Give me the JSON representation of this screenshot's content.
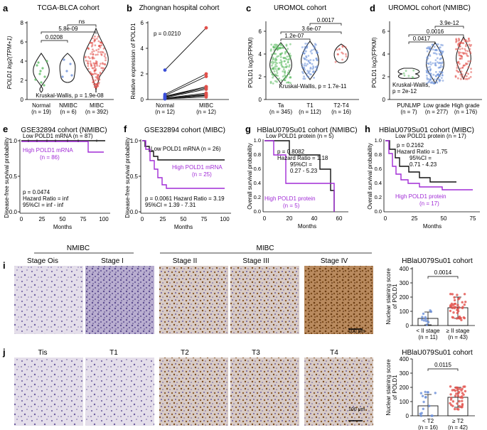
{
  "colors": {
    "green": "#5dbb63",
    "blue": "#6a8fd8",
    "red": "#e2504b",
    "purple": "#a12bd6",
    "black": "#111111",
    "ihc_bg": "#dcd6e6",
    "ihc_brown": "#8b5a2b"
  },
  "panels": {
    "a": {
      "label": "a",
      "title": "TCGA-BLCA cohort",
      "ylabel": "POLD1 log2(TPM+1)",
      "yticks": [
        "0",
        "2",
        "4",
        "6",
        "8"
      ],
      "groups": [
        {
          "name": "Normal",
          "n": "(n = 19)",
          "color": "#5dbb63"
        },
        {
          "name": "NMIBC",
          "n": "(n = 6)",
          "color": "#6a8fd8"
        },
        {
          "name": "MIBC",
          "n": "(n = 392)",
          "color": "#e2504b"
        }
      ],
      "brackets": [
        "0.0208",
        "5.8e-09",
        "ns"
      ],
      "test": "Kruskal-Wallis, p = 1.9e-08"
    },
    "b": {
      "label": "b",
      "title": "Zhongnan hospital cohort",
      "ylabel": "Relative expression of POLD1",
      "yticks": [
        "0",
        "2",
        "4",
        "6"
      ],
      "pvalue": "p = 0.0210",
      "groups": [
        {
          "name": "Normal",
          "n": "(n = 12)"
        },
        {
          "name": "MIBC",
          "n": "(n = 12)"
        }
      ],
      "pairs": [
        [
          2.3,
          5.6
        ],
        [
          0.4,
          2.0
        ],
        [
          0.3,
          1.8
        ],
        [
          0.25,
          1.0
        ],
        [
          0.2,
          1.0
        ],
        [
          0.2,
          0.9
        ],
        [
          0.15,
          0.8
        ],
        [
          0.1,
          0.5
        ],
        [
          0.1,
          0.4
        ],
        [
          0.1,
          0.35
        ],
        [
          0.05,
          0.3
        ],
        [
          0.05,
          0.2
        ]
      ]
    },
    "c": {
      "label": "c",
      "title": "UROMOL cohort",
      "ylabel": "POLD1 log2(FPKM)",
      "yticks": [
        "0",
        "2",
        "4",
        "6"
      ],
      "groups": [
        {
          "name": "Ta",
          "n": "(n = 345)",
          "color": "#5dbb63"
        },
        {
          "name": "T1",
          "n": "(n = 112)",
          "color": "#6a8fd8"
        },
        {
          "name": "T2-T4",
          "n": "(n = 16)",
          "color": "#e2504b"
        }
      ],
      "brackets": [
        "1.2e-07",
        "3.6e-07",
        "0.0017"
      ],
      "test": "Kruskal-Wallis, p = 1.7e-11"
    },
    "d": {
      "label": "d",
      "title": "UROMOL cohort (NMIBC)",
      "ylabel": "POLD1 log2(FPKM)",
      "yticks": [
        "0",
        "2",
        "4",
        "6"
      ],
      "groups": [
        {
          "name": "PUNLMP",
          "n": "(n = 7)",
          "color": "#5dbb63"
        },
        {
          "name": "Low grade",
          "n": "(n = 277)",
          "color": "#6a8fd8"
        },
        {
          "name": "High grade",
          "n": "(n = 176)",
          "color": "#e2504b"
        }
      ],
      "brackets": [
        "0.0417",
        "0.0016",
        "3.9e-12"
      ],
      "test_line1": "Kruskal-Wallis,",
      "test_line2": "p = 2e-12"
    },
    "e": {
      "label": "e",
      "title": "GSE32894 cohort (NMIBC)",
      "ylabel": "Disease-free survival probability",
      "xlabel": "Months",
      "xticks": [
        "0",
        "25",
        "50",
        "75",
        "100"
      ],
      "yticks": [
        "0.0",
        "0.5",
        "1.0"
      ],
      "low": "Low POLD1 mRNA (n = 87)",
      "high_line1": "High POLD1 mRNA",
      "high_line2": "(n = 86)",
      "stats": [
        "p = 0.0474",
        "Hazard Ratio = inf",
        "95%CI = inf - inf"
      ]
    },
    "f": {
      "label": "f",
      "title": "GSE32894 cohort (MIBC)",
      "ylabel": "Disease-free survival probability",
      "xlabel": "Months",
      "xticks": [
        "0",
        "25",
        "50",
        "75",
        "100"
      ],
      "yticks": [
        "0.0",
        "0.5",
        "1.0"
      ],
      "low": "Low POLD1 mRNA (n = 26)",
      "high_line1": "High POLD1 mRNA",
      "high_line2": "(n = 25)",
      "stats_line1": "p = 0.0061  Hazard Ratio = 3.19",
      "stats_line2": "95%CI = 1.39 - 7.31"
    },
    "g": {
      "label": "g",
      "title": "HBlaU079Su01 cohort (NMIBC)",
      "ylabel": "Overall survival probability",
      "xlabel": "Months",
      "xticks": [
        "0",
        "20",
        "40",
        "60"
      ],
      "yticks": [
        "0.0",
        "0.2",
        "0.4",
        "0.6",
        "0.8",
        "1.0"
      ],
      "low": "Low POLD1 protein (n = 5)",
      "high_line1": "High POLD1 protein",
      "high_line2": "(n = 5)",
      "stats": [
        "p = 0.8082",
        "Hazard Ratio = 1.18",
        "95%CI =",
        "0.27 - 5.23"
      ]
    },
    "h": {
      "label": "h",
      "title": "HBlaU079Su01 cohort (MIBC)",
      "ylabel": "Overall survival probability",
      "xlabel": "Months",
      "xticks": [
        "0",
        "25",
        "50",
        "75"
      ],
      "yticks": [
        "0.0",
        "0.2",
        "0.4",
        "0.6",
        "0.8",
        "1.0"
      ],
      "low": "Low POLD1 protein (n = 17)",
      "high_line1": "High POLD1 protein",
      "high_line2": "(n = 17)",
      "stats": [
        "p = 0.2162",
        "Hazard Ratio = 1.75",
        "95%CI =",
        "0.71 - 4.23"
      ]
    },
    "i": {
      "label": "i",
      "group1": "NMIBC",
      "group2": "MIBC",
      "stages": [
        "Stage Ois",
        "Stage I",
        "Stage II",
        "Stage III",
        "Stage IV"
      ],
      "scale": "100 μm",
      "chart_title": "HBlaU079Su01 cohort",
      "ylabel": "Nuclear staining score of POLD1",
      "yticks": [
        "0",
        "100",
        "200",
        "300",
        "400"
      ],
      "pvalue": "0.0014",
      "bars": [
        {
          "name": "< II stage",
          "n": "(n = 11)",
          "mean": 50,
          "sd": 45,
          "color": "#6a8fd8"
        },
        {
          "name": "≥ II stage",
          "n": "(n = 43)",
          "mean": 125,
          "sd": 75,
          "color": "#e2504b"
        }
      ]
    },
    "j": {
      "label": "j",
      "stages": [
        "Tis",
        "T1",
        "T2",
        "T3",
        "T4"
      ],
      "scale": "100 μm",
      "chart_title": "HBlaU079Su01 cohort",
      "ylabel": "Nuclear staining score of POLD1",
      "yticks": [
        "0",
        "100",
        "200",
        "300",
        "400"
      ],
      "pvalue": "0.0115",
      "bars": [
        {
          "name": "< T2",
          "n": "(n = 16)",
          "mean": 70,
          "sd": 80,
          "color": "#6a8fd8"
        },
        {
          "name": "≥ T2",
          "n": "(n = 42)",
          "mean": 130,
          "sd": 70,
          "color": "#e2504b"
        }
      ]
    }
  },
  "chart_data": [
    {
      "type": "scatter",
      "panel": "a",
      "title": "TCGA-BLCA cohort",
      "ylabel": "POLD1 log2(TPM+1)",
      "categories": [
        "Normal",
        "NMIBC",
        "MIBC"
      ],
      "series": [
        {
          "name": "median",
          "values": [
            3.6,
            4.3,
            4.8
          ]
        }
      ],
      "ylim": [
        0,
        8
      ]
    },
    {
      "type": "line",
      "panel": "b",
      "title": "Zhongnan hospital cohort",
      "ylabel": "Relative expression of POLD1",
      "categories": [
        "Normal",
        "MIBC"
      ],
      "ylim": [
        0,
        6
      ]
    },
    {
      "type": "scatter",
      "panel": "c",
      "title": "UROMOL cohort",
      "ylabel": "POLD1 log2(FPKM)",
      "categories": [
        "Ta",
        "T1",
        "T2-T4"
      ],
      "series": [
        {
          "name": "median",
          "values": [
            2.8,
            3.4,
            3.8
          ]
        }
      ],
      "ylim": [
        0,
        7
      ]
    },
    {
      "type": "scatter",
      "panel": "d",
      "title": "UROMOL cohort (NMIBC)",
      "ylabel": "POLD1 log2(FPKM)",
      "categories": [
        "PUNLMP",
        "Low grade",
        "High grade"
      ],
      "series": [
        {
          "name": "median",
          "values": [
            2.2,
            2.9,
            3.4
          ]
        }
      ],
      "ylim": [
        0,
        7
      ]
    },
    {
      "type": "line",
      "panel": "e",
      "title": "GSE32894 cohort (NMIBC)",
      "xlabel": "Months",
      "ylabel": "Disease-free survival probability",
      "series": [
        {
          "name": "Low POLD1 mRNA",
          "x": [
            0,
            105
          ],
          "y": [
            1.0,
            1.0
          ]
        },
        {
          "name": "High POLD1 mRNA",
          "x": [
            0,
            80,
            82,
            105
          ],
          "y": [
            1.0,
            1.0,
            0.84,
            0.84
          ]
        }
      ],
      "xlim": [
        0,
        110
      ],
      "ylim": [
        0,
        1
      ]
    },
    {
      "type": "line",
      "panel": "f",
      "title": "GSE32894 cohort (MIBC)",
      "xlabel": "Months",
      "ylabel": "Disease-free survival probability",
      "series": [
        {
          "name": "Low POLD1 mRNA",
          "x": [
            0,
            5,
            10,
            15,
            20,
            100
          ],
          "y": [
            1.0,
            0.92,
            0.85,
            0.78,
            0.73,
            0.73
          ]
        },
        {
          "name": "High POLD1 mRNA",
          "x": [
            0,
            5,
            10,
            15,
            20,
            25,
            30,
            100
          ],
          "y": [
            1.0,
            0.88,
            0.72,
            0.6,
            0.48,
            0.38,
            0.33,
            0.33
          ]
        }
      ],
      "xlim": [
        0,
        100
      ],
      "ylim": [
        0,
        1
      ]
    },
    {
      "type": "line",
      "panel": "g",
      "title": "HBlaU079Su01 cohort (NMIBC)",
      "xlabel": "Months",
      "ylabel": "Overall survival probability",
      "series": [
        {
          "name": "Low POLD1 protein",
          "x": [
            0,
            20,
            45,
            55,
            58
          ],
          "y": [
            1.0,
            0.8,
            0.6,
            0.3,
            0.0
          ]
        },
        {
          "name": "High POLD1 protein",
          "x": [
            0,
            8,
            18,
            58,
            60
          ],
          "y": [
            1.0,
            0.8,
            0.4,
            0.4,
            0.0
          ]
        }
      ],
      "xlim": [
        0,
        65
      ],
      "ylim": [
        0,
        1
      ]
    },
    {
      "type": "line",
      "panel": "h",
      "title": "HBlaU079Su01 cohort (MIBC)",
      "xlabel": "Months",
      "ylabel": "Overall survival probability",
      "series": [
        {
          "name": "Low POLD1 protein",
          "x": [
            0,
            5,
            12,
            25,
            40,
            50,
            62
          ],
          "y": [
            1.0,
            0.88,
            0.76,
            0.64,
            0.56,
            0.48,
            0.48
          ]
        },
        {
          "name": "High POLD1 protein",
          "x": [
            0,
            4,
            8,
            12,
            20,
            30,
            50,
            75
          ],
          "y": [
            1.0,
            0.82,
            0.64,
            0.53,
            0.45,
            0.4,
            0.35,
            0.35
          ]
        }
      ],
      "xlim": [
        0,
        75
      ],
      "ylim": [
        0,
        1
      ]
    },
    {
      "type": "bar",
      "panel": "i",
      "title": "HBlaU079Su01 cohort",
      "ylabel": "Nuclear staining score of POLD1",
      "categories": [
        "< II stage",
        "≥ II stage"
      ],
      "values": [
        50,
        125
      ],
      "ylim": [
        0,
        400
      ]
    },
    {
      "type": "bar",
      "panel": "j",
      "title": "HBlaU079Su01 cohort",
      "ylabel": "Nuclear staining score of POLD1",
      "categories": [
        "< T2",
        "≥ T2"
      ],
      "values": [
        70,
        130
      ],
      "ylim": [
        0,
        400
      ]
    }
  ]
}
